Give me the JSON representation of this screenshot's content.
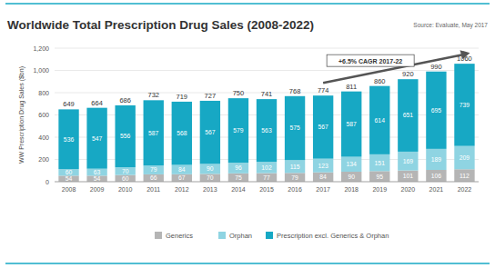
{
  "chart_data": {
    "type": "bar",
    "stacked": true,
    "data_labels": true,
    "grid": true,
    "legend": "bottom",
    "title": "Worldwide Total Prescription Drug Sales (2008-2022)",
    "source": "Source: Evaluate, May 2017",
    "y_label": "WW Prescription Drug Sales ($bn)",
    "annotation": "+6.5% CAGR 2017-22",
    "categories": [
      "2008",
      "2009",
      "2010",
      "2011",
      "2012",
      "2013",
      "2014",
      "2015",
      "2016",
      "2017",
      "2018",
      "2019",
      "2020",
      "2021",
      "2022"
    ],
    "series": [
      {
        "name": "Generics",
        "color": "#b5b5b5",
        "values": [
          54,
          54,
          60,
          66,
          67,
          70,
          75,
          77,
          79,
          84,
          90,
          95,
          101,
          106,
          112
        ]
      },
      {
        "name": "Orphan",
        "color": "#8fd4e2",
        "values": [
          60,
          63,
          70,
          79,
          84,
          90,
          96,
          102,
          115,
          123,
          134,
          151,
          169,
          189,
          209
        ]
      },
      {
        "name": "Prescription excl. Generics & Orphan",
        "color": "#17a8c4",
        "values": [
          536,
          547,
          556,
          587,
          568,
          567,
          579,
          563,
          575,
          567,
          587,
          614,
          651,
          695,
          739
        ]
      }
    ],
    "totals": [
      649,
      664,
      686,
      732,
      719,
      727,
      750,
      741,
      768,
      774,
      811,
      860,
      920,
      990,
      1060
    ],
    "ylim": [
      0,
      1200
    ],
    "yticks": [
      0,
      200,
      400,
      600,
      800,
      {
        "value": 1000,
        "label": "1,000"
      },
      {
        "value": 1200,
        "label": "1,200"
      }
    ]
  }
}
